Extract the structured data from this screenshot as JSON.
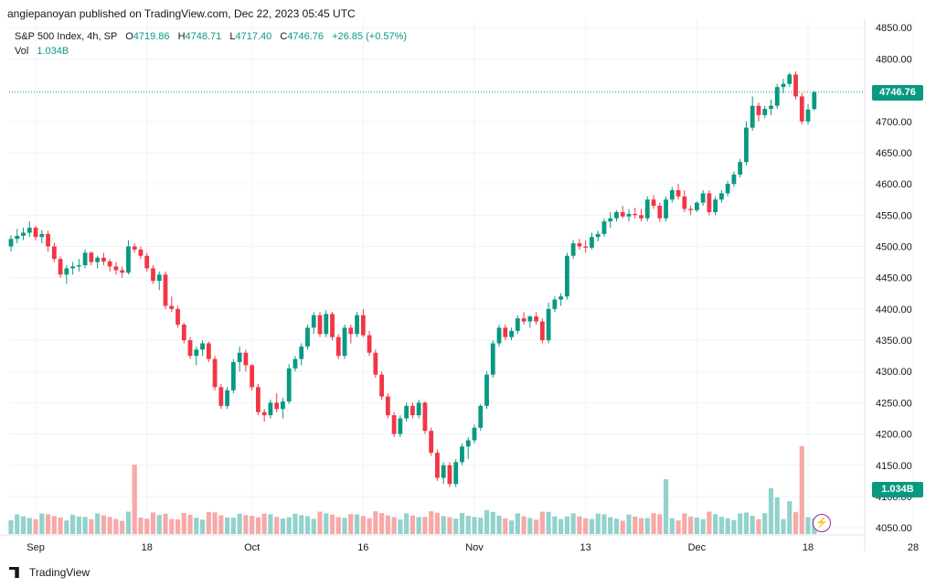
{
  "publisher_line": "angiepanoyan published on TradingView.com, Dec 22, 2023 05:45 UTC",
  "legend": {
    "symbol": "S&P 500 Index, 4h, SP",
    "open_key": "O",
    "open": "4719.86",
    "high_key": "H",
    "high": "4748.71",
    "low_key": "L",
    "low": "4717.40",
    "close_key": "C",
    "close": "4746.76",
    "change": "+26.85 (+0.57%)",
    "vol_label": "Vol",
    "vol_value": "1.034B"
  },
  "price_badge": "4746.76",
  "volume_badge": "1.034B",
  "footer_brand": "TradingView",
  "colors": {
    "up": "#089981",
    "down": "#f23645",
    "up_vol": "#92d2cc",
    "down_vol": "#f7a9a7",
    "grid": "#f0f3fa",
    "axis_text": "#131722"
  },
  "chart_data": {
    "type": "candlestick",
    "title": "S&P 500 Index, 4h, SP",
    "y_axis": {
      "ticks": [
        4050,
        4100,
        4150,
        4200,
        4250,
        4300,
        4350,
        4400,
        4450,
        4500,
        4550,
        4600,
        4650,
        4700,
        4750,
        4800,
        4850
      ],
      "tick_labels": [
        "4050.00",
        "4100.00",
        "4150.00",
        "4200.00",
        "4250.00",
        "4300.00",
        "4350.00",
        "4400.00",
        "4450.00",
        "4500.00",
        "4550.00",
        "4600.00",
        "4650.00",
        "4700.00",
        "4750.00",
        "4800.00",
        "4850.00"
      ],
      "range": [
        4040,
        4862
      ]
    },
    "x_axis": {
      "tick_labels": [
        "Sep",
        "18",
        "Oct",
        "16",
        "Nov",
        "13",
        "Dec",
        "18",
        "28"
      ],
      "tick_bar_index": [
        4,
        22,
        39,
        57,
        75,
        93,
        111,
        129,
        146
      ]
    },
    "last_price": 4746.76,
    "volume_last": "1.034B",
    "ohlc": [
      [
        4500,
        4518,
        4492,
        4512
      ],
      [
        4512,
        4528,
        4505,
        4517
      ],
      [
        4517,
        4530,
        4510,
        4522
      ],
      [
        4522,
        4540,
        4515,
        4530
      ],
      [
        4530,
        4533,
        4510,
        4515
      ],
      [
        4515,
        4526,
        4505,
        4520
      ],
      [
        4520,
        4525,
        4492,
        4500
      ],
      [
        4500,
        4506,
        4475,
        4480
      ],
      [
        4480,
        4484,
        4450,
        4455
      ],
      [
        4455,
        4470,
        4440,
        4465
      ],
      [
        4465,
        4475,
        4455,
        4468
      ],
      [
        4468,
        4480,
        4460,
        4470
      ],
      [
        4470,
        4495,
        4465,
        4490
      ],
      [
        4490,
        4492,
        4470,
        4475
      ],
      [
        4475,
        4485,
        4465,
        4482
      ],
      [
        4482,
        4490,
        4470,
        4476
      ],
      [
        4476,
        4480,
        4460,
        4468
      ],
      [
        4468,
        4475,
        4455,
        4462
      ],
      [
        4462,
        4468,
        4450,
        4458
      ],
      [
        4458,
        4510,
        4455,
        4500
      ],
      [
        4500,
        4505,
        4490,
        4495
      ],
      [
        4495,
        4500,
        4480,
        4485
      ],
      [
        4485,
        4490,
        4460,
        4465
      ],
      [
        4465,
        4470,
        4440,
        4445
      ],
      [
        4445,
        4460,
        4430,
        4455
      ],
      [
        4455,
        4460,
        4400,
        4405
      ],
      [
        4405,
        4420,
        4395,
        4400
      ],
      [
        4400,
        4405,
        4370,
        4375
      ],
      [
        4375,
        4378,
        4345,
        4350
      ],
      [
        4350,
        4355,
        4320,
        4325
      ],
      [
        4325,
        4340,
        4310,
        4335
      ],
      [
        4335,
        4350,
        4325,
        4345
      ],
      [
        4345,
        4348,
        4315,
        4320
      ],
      [
        4320,
        4325,
        4270,
        4275
      ],
      [
        4275,
        4280,
        4240,
        4245
      ],
      [
        4245,
        4275,
        4240,
        4270
      ],
      [
        4270,
        4320,
        4265,
        4315
      ],
      [
        4315,
        4340,
        4300,
        4330
      ],
      [
        4330,
        4335,
        4300,
        4310
      ],
      [
        4310,
        4312,
        4270,
        4275
      ],
      [
        4275,
        4280,
        4230,
        4235
      ],
      [
        4235,
        4240,
        4220,
        4230
      ],
      [
        4230,
        4255,
        4225,
        4250
      ],
      [
        4250,
        4265,
        4235,
        4240
      ],
      [
        4240,
        4258,
        4225,
        4252
      ],
      [
        4252,
        4312,
        4248,
        4305
      ],
      [
        4305,
        4325,
        4300,
        4320
      ],
      [
        4320,
        4345,
        4310,
        4340
      ],
      [
        4340,
        4375,
        4335,
        4370
      ],
      [
        4370,
        4395,
        4360,
        4390
      ],
      [
        4390,
        4395,
        4355,
        4360
      ],
      [
        4360,
        4398,
        4355,
        4392
      ],
      [
        4392,
        4395,
        4350,
        4355
      ],
      [
        4355,
        4360,
        4320,
        4325
      ],
      [
        4325,
        4375,
        4320,
        4370
      ],
      [
        4370,
        4375,
        4345,
        4360
      ],
      [
        4360,
        4395,
        4355,
        4390
      ],
      [
        4390,
        4400,
        4355,
        4358
      ],
      [
        4358,
        4365,
        4325,
        4330
      ],
      [
        4330,
        4335,
        4290,
        4295
      ],
      [
        4295,
        4300,
        4255,
        4260
      ],
      [
        4260,
        4265,
        4225,
        4230
      ],
      [
        4230,
        4235,
        4195,
        4200
      ],
      [
        4200,
        4230,
        4195,
        4225
      ],
      [
        4225,
        4250,
        4220,
        4245
      ],
      [
        4245,
        4250,
        4225,
        4230
      ],
      [
        4230,
        4255,
        4225,
        4250
      ],
      [
        4250,
        4252,
        4200,
        4205
      ],
      [
        4205,
        4210,
        4165,
        4170
      ],
      [
        4170,
        4175,
        4125,
        4130
      ],
      [
        4130,
        4155,
        4120,
        4150
      ],
      [
        4150,
        4155,
        4115,
        4120
      ],
      [
        4120,
        4160,
        4115,
        4155
      ],
      [
        4155,
        4185,
        4150,
        4180
      ],
      [
        4180,
        4195,
        4160,
        4190
      ],
      [
        4190,
        4215,
        4185,
        4210
      ],
      [
        4210,
        4248,
        4205,
        4245
      ],
      [
        4245,
        4300,
        4240,
        4295
      ],
      [
        4295,
        4350,
        4290,
        4345
      ],
      [
        4345,
        4375,
        4340,
        4370
      ],
      [
        4370,
        4375,
        4350,
        4355
      ],
      [
        4355,
        4370,
        4350,
        4365
      ],
      [
        4365,
        4390,
        4360,
        4385
      ],
      [
        4385,
        4395,
        4375,
        4380
      ],
      [
        4380,
        4390,
        4370,
        4388
      ],
      [
        4388,
        4395,
        4375,
        4380
      ],
      [
        4380,
        4385,
        4345,
        4350
      ],
      [
        4350,
        4410,
        4345,
        4400
      ],
      [
        4400,
        4420,
        4395,
        4415
      ],
      [
        4415,
        4425,
        4405,
        4420
      ],
      [
        4420,
        4490,
        4415,
        4485
      ],
      [
        4485,
        4510,
        4480,
        4505
      ],
      [
        4505,
        4512,
        4495,
        4500
      ],
      [
        4500,
        4510,
        4490,
        4498
      ],
      [
        4498,
        4522,
        4495,
        4515
      ],
      [
        4515,
        4525,
        4508,
        4520
      ],
      [
        4520,
        4545,
        4515,
        4540
      ],
      [
        4540,
        4555,
        4530,
        4545
      ],
      [
        4545,
        4558,
        4540,
        4555
      ],
      [
        4555,
        4565,
        4545,
        4548
      ],
      [
        4548,
        4560,
        4540,
        4552
      ],
      [
        4552,
        4562,
        4545,
        4550
      ],
      [
        4550,
        4560,
        4540,
        4545
      ],
      [
        4545,
        4580,
        4540,
        4575
      ],
      [
        4575,
        4582,
        4560,
        4565
      ],
      [
        4565,
        4570,
        4540,
        4545
      ],
      [
        4545,
        4580,
        4540,
        4575
      ],
      [
        4575,
        4595,
        4570,
        4590
      ],
      [
        4590,
        4600,
        4575,
        4580
      ],
      [
        4580,
        4590,
        4555,
        4560
      ],
      [
        4560,
        4565,
        4550,
        4558
      ],
      [
        4558,
        4572,
        4555,
        4570
      ],
      [
        4570,
        4590,
        4565,
        4585
      ],
      [
        4585,
        4590,
        4550,
        4555
      ],
      [
        4555,
        4580,
        4550,
        4575
      ],
      [
        4575,
        4590,
        4570,
        4585
      ],
      [
        4585,
        4605,
        4580,
        4600
      ],
      [
        4600,
        4620,
        4595,
        4615
      ],
      [
        4615,
        4640,
        4610,
        4635
      ],
      [
        4635,
        4700,
        4630,
        4690
      ],
      [
        4690,
        4740,
        4685,
        4725
      ],
      [
        4725,
        4730,
        4700,
        4710
      ],
      [
        4710,
        4725,
        4705,
        4720
      ],
      [
        4720,
        4735,
        4710,
        4725
      ],
      [
        4725,
        4760,
        4720,
        4755
      ],
      [
        4755,
        4768,
        4745,
        4760
      ],
      [
        4760,
        4778,
        4755,
        4775
      ],
      [
        4775,
        4780,
        4735,
        4740
      ],
      [
        4740,
        4745,
        4695,
        4700
      ],
      [
        4700,
        4728,
        4695,
        4719
      ],
      [
        4719.86,
        4748.71,
        4717.4,
        4746.76
      ]
    ],
    "volume_direction": "matches candle direction; teal = up, red = down"
  }
}
